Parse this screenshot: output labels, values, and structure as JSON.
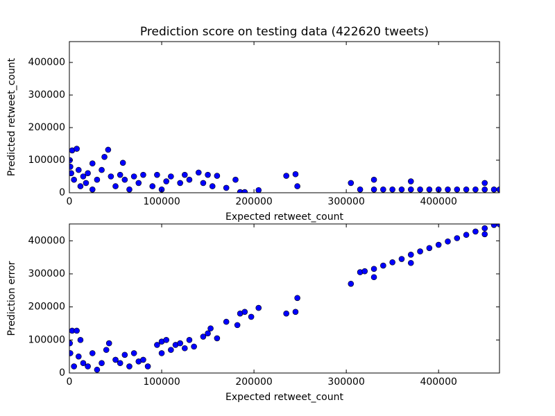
{
  "chart_data": [
    {
      "type": "scatter",
      "title": "Prediction score on testing data (422620 tweets)",
      "x_label": "Expected retweet_count",
      "y_label": "Predicted retweet_count",
      "color": "#0000ff",
      "x": [
        500,
        1000,
        2000,
        3000,
        5000,
        8000,
        10000,
        12000,
        15000,
        18000,
        20000,
        25000,
        25000,
        30000,
        35000,
        38000,
        42000,
        45000,
        50000,
        55000,
        58000,
        60000,
        65000,
        70000,
        75000,
        80000,
        90000,
        95000,
        100000,
        105000,
        110000,
        120000,
        125000,
        130000,
        140000,
        145000,
        150000,
        155000,
        160000,
        170000,
        180000,
        185000,
        190000,
        205000,
        235000,
        245000,
        247000,
        305000,
        315000,
        330000,
        330000,
        340000,
        350000,
        360000,
        370000,
        370000,
        380000,
        390000,
        400000,
        410000,
        420000,
        430000,
        440000,
        450000,
        450000,
        460000,
        466000
      ],
      "values": [
        100000,
        80000,
        60000,
        130000,
        40000,
        135000,
        70000,
        20000,
        50000,
        30000,
        60000,
        10000,
        90000,
        40000,
        70000,
        110000,
        132000,
        50000,
        20000,
        55000,
        92000,
        40000,
        10000,
        50000,
        30000,
        55000,
        20000,
        55000,
        10000,
        35000,
        50000,
        30000,
        55000,
        40000,
        62000,
        30000,
        55000,
        20000,
        52000,
        15000,
        40000,
        2000,
        2000,
        8000,
        52000,
        57000,
        20000,
        30000,
        10000,
        40000,
        10000,
        10000,
        10000,
        10000,
        35000,
        10000,
        10000,
        10000,
        10000,
        10000,
        10000,
        10000,
        10000,
        30000,
        10000,
        10000,
        10000
      ],
      "xlim": [
        0,
        466000
      ],
      "ylim": [
        0,
        464000
      ],
      "xticks": [
        0,
        100000,
        200000,
        300000,
        400000
      ],
      "yticks": [
        0,
        100000,
        200000,
        300000,
        400000
      ]
    },
    {
      "type": "scatter",
      "x_label": "Expected retweet_count",
      "y_label": "Prediction error",
      "color": "#0000ff",
      "x": [
        500,
        1000,
        3000,
        8000,
        5000,
        10000,
        12000,
        15000,
        20000,
        25000,
        30000,
        35000,
        40000,
        43000,
        50000,
        55000,
        60000,
        65000,
        70000,
        75000,
        80000,
        85000,
        95000,
        100000,
        100000,
        105000,
        110000,
        115000,
        120000,
        125000,
        130000,
        135000,
        145000,
        150000,
        153000,
        160000,
        170000,
        182000,
        185000,
        190000,
        197000,
        205000,
        235000,
        245000,
        247000,
        305000,
        315000,
        320000,
        330000,
        330000,
        340000,
        350000,
        360000,
        370000,
        370000,
        380000,
        390000,
        400000,
        410000,
        420000,
        430000,
        440000,
        450000,
        450000,
        460000,
        466000
      ],
      "values": [
        90000,
        60000,
        128000,
        128000,
        20000,
        50000,
        100000,
        30000,
        20000,
        60000,
        10000,
        30000,
        70000,
        90000,
        40000,
        30000,
        55000,
        20000,
        60000,
        35000,
        40000,
        20000,
        85000,
        60000,
        95000,
        100000,
        70000,
        85000,
        90000,
        75000,
        100000,
        80000,
        110000,
        120000,
        135000,
        105000,
        155000,
        145000,
        180000,
        185000,
        170000,
        197000,
        180000,
        185000,
        227000,
        270000,
        305000,
        308000,
        290000,
        315000,
        325000,
        335000,
        345000,
        333000,
        358000,
        368000,
        378000,
        388000,
        398000,
        408000,
        418000,
        428000,
        420000,
        438000,
        448000,
        450000
      ],
      "xlim": [
        0,
        466000
      ],
      "ylim": [
        0,
        451000
      ],
      "xticks": [
        0,
        100000,
        200000,
        300000,
        400000
      ],
      "yticks": [
        0,
        100000,
        200000,
        300000,
        400000
      ]
    }
  ]
}
